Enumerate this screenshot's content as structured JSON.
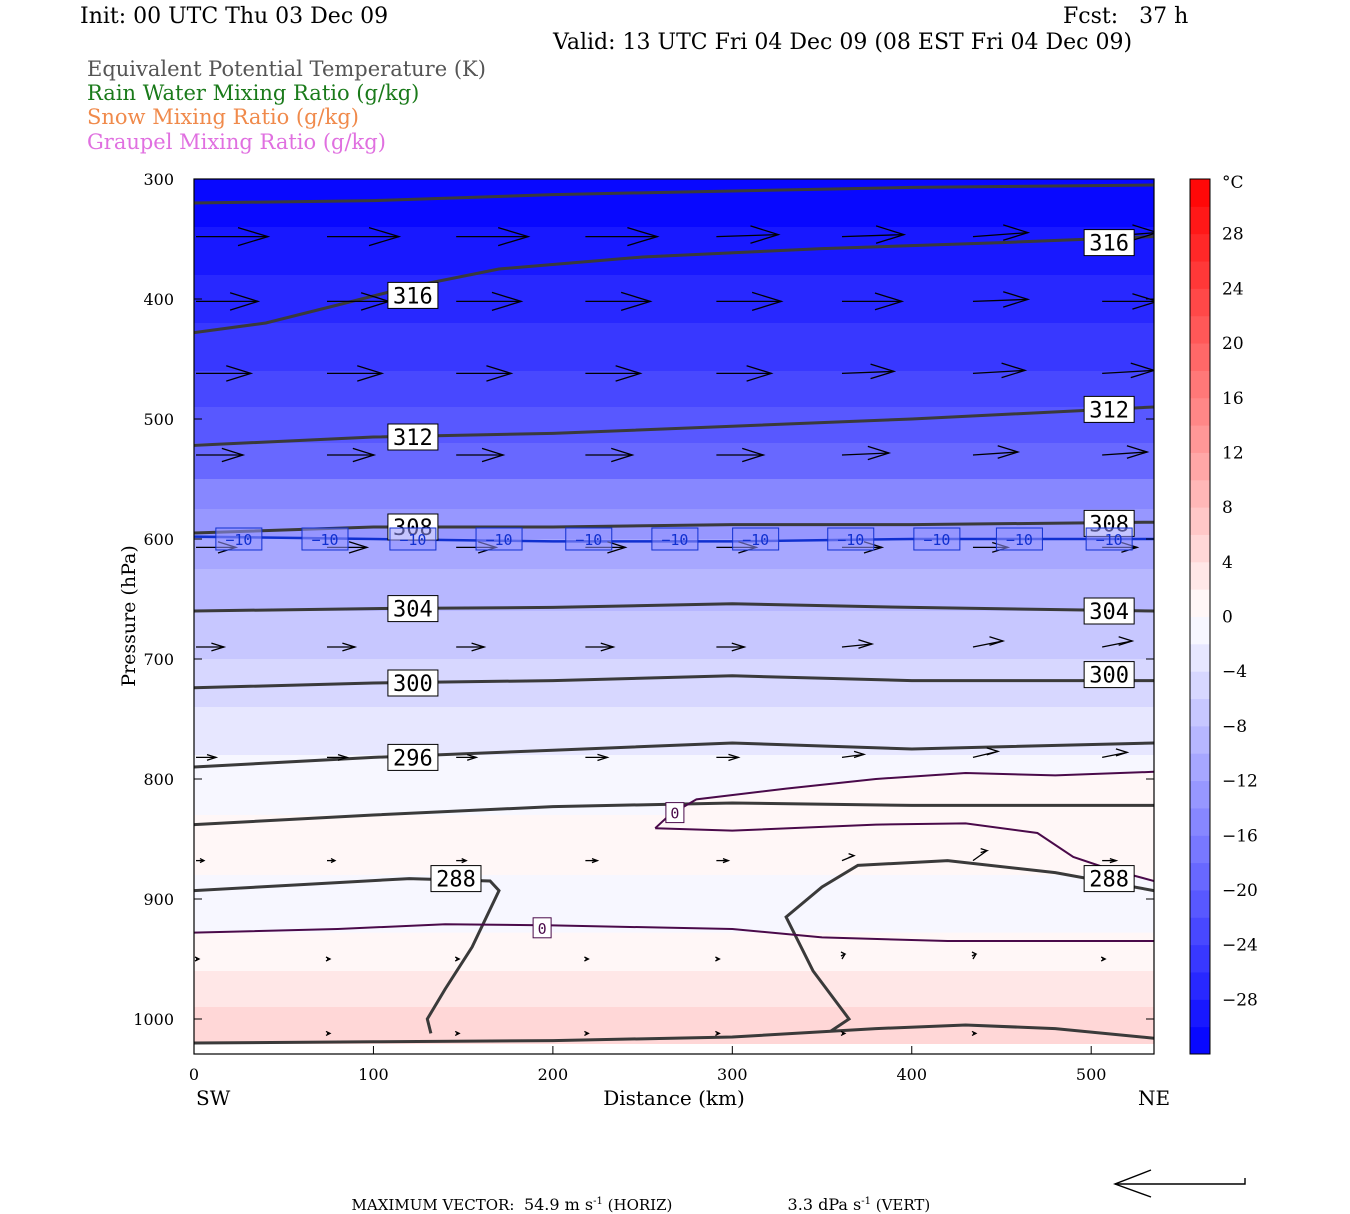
{
  "header": {
    "init": "Init: 00 UTC Thu 03 Dec 09",
    "fcst": "Fcst:   37 h",
    "valid": "Valid: 13 UTC Fri 04 Dec 09 (08 EST Fri 04 Dec 09)"
  },
  "legend": [
    {
      "label": "Equivalent Potential Temperature (K)",
      "color": "#555555"
    },
    {
      "label": "Rain Water Mixing Ratio (g/kg)",
      "color": "#1a7a1a"
    },
    {
      "label": "Snow Mixing Ratio (g/kg)",
      "color": "#f08a4b"
    },
    {
      "label": "Graupel Mixing Ratio (g/kg)",
      "color": "#e070e0"
    }
  ],
  "chart_data": {
    "type": "cross-section",
    "xlabel": "Distance (km)",
    "ylabel": "Pressure (hPa)",
    "xlim": [
      0,
      535
    ],
    "ylim": [
      1020,
      300
    ],
    "y_log_scale": false,
    "x_ticks": [
      0,
      100,
      200,
      300,
      400,
      500
    ],
    "y_ticks": [
      300,
      400,
      500,
      600,
      700,
      800,
      900,
      1000
    ],
    "x_left_label": "SW",
    "x_right_label": "NE",
    "colorbar": {
      "unit": "°C",
      "levels": [
        -32,
        -30,
        -28,
        -26,
        -24,
        -22,
        -20,
        -18,
        -16,
        -14,
        -12,
        -10,
        -8,
        -6,
        -4,
        -2,
        0,
        2,
        4,
        6,
        8,
        10,
        12,
        14,
        16,
        18,
        20,
        22,
        24,
        26,
        28,
        30,
        32
      ],
      "tick_labels": [
        "28",
        "24",
        "20",
        "16",
        "12",
        "8",
        "4",
        "0",
        "−4",
        "−8",
        "−12",
        "−16",
        "−20",
        "−24",
        "−28"
      ],
      "tick_values": [
        28,
        24,
        20,
        16,
        12,
        8,
        4,
        0,
        -4,
        -8,
        -12,
        -16,
        -20,
        -24,
        -28
      ]
    },
    "theta_e_contours": [
      {
        "value": "316",
        "points": [
          [
            0,
            428
          ],
          [
            40,
            420
          ],
          [
            80,
            405
          ],
          [
            120,
            390
          ],
          [
            170,
            375
          ],
          [
            250,
            365
          ],
          [
            350,
            358
          ],
          [
            450,
            353
          ],
          [
            535,
            348
          ]
        ]
      },
      {
        "value": "",
        "points": [
          [
            0,
            320
          ],
          [
            100,
            318
          ],
          [
            200,
            313
          ],
          [
            300,
            310
          ],
          [
            400,
            307
          ],
          [
            535,
            305
          ]
        ]
      },
      {
        "value": "312",
        "points": [
          [
            0,
            522
          ],
          [
            100,
            515
          ],
          [
            200,
            512
          ],
          [
            300,
            506
          ],
          [
            400,
            500
          ],
          [
            535,
            490
          ]
        ]
      },
      {
        "value": "308",
        "points": [
          [
            0,
            595
          ],
          [
            100,
            590
          ],
          [
            200,
            590
          ],
          [
            300,
            588
          ],
          [
            400,
            588
          ],
          [
            535,
            586
          ]
        ]
      },
      {
        "value": "304",
        "points": [
          [
            0,
            660
          ],
          [
            100,
            658
          ],
          [
            200,
            657
          ],
          [
            300,
            654
          ],
          [
            400,
            657
          ],
          [
            535,
            660
          ]
        ]
      },
      {
        "value": "300",
        "points": [
          [
            0,
            724
          ],
          [
            100,
            720
          ],
          [
            200,
            718
          ],
          [
            300,
            714
          ],
          [
            400,
            718
          ],
          [
            535,
            718
          ]
        ]
      },
      {
        "value": "296",
        "points": [
          [
            0,
            790
          ],
          [
            100,
            782
          ],
          [
            200,
            776
          ],
          [
            300,
            770
          ],
          [
            400,
            775
          ],
          [
            535,
            770
          ]
        ]
      },
      {
        "value": "",
        "points": [
          [
            0,
            838
          ],
          [
            100,
            830
          ],
          [
            200,
            823
          ],
          [
            300,
            820
          ],
          [
            400,
            822
          ],
          [
            535,
            822
          ]
        ]
      },
      {
        "value": "288",
        "points": [
          [
            0,
            893
          ],
          [
            60,
            888
          ],
          [
            120,
            883
          ],
          [
            165,
            885
          ],
          [
            170,
            893
          ],
          [
            155,
            940
          ],
          [
            140,
            975
          ],
          [
            130,
            1000
          ],
          [
            132,
            1012
          ]
        ]
      },
      {
        "value": "288",
        "points": [
          [
            535,
            893
          ],
          [
            480,
            878
          ],
          [
            420,
            868
          ],
          [
            370,
            872
          ],
          [
            350,
            890
          ],
          [
            330,
            915
          ],
          [
            345,
            960
          ],
          [
            365,
            1000
          ],
          [
            355,
            1010
          ]
        ]
      },
      {
        "value": "",
        "points": [
          [
            0,
            1020
          ],
          [
            100,
            1019
          ],
          [
            200,
            1018
          ],
          [
            300,
            1015
          ],
          [
            380,
            1008
          ],
          [
            430,
            1005
          ],
          [
            480,
            1008
          ],
          [
            535,
            1016
          ]
        ]
      }
    ],
    "theta_e_labels": [
      {
        "text": "316",
        "x": 122,
        "y": 397
      },
      {
        "text": "316",
        "x": 510,
        "y": 353
      },
      {
        "text": "312",
        "x": 122,
        "y": 515
      },
      {
        "text": "312",
        "x": 510,
        "y": 492
      },
      {
        "text": "308",
        "x": 122,
        "y": 590
      },
      {
        "text": "308",
        "x": 510,
        "y": 587
      },
      {
        "text": "304",
        "x": 122,
        "y": 658
      },
      {
        "text": "304",
        "x": 510,
        "y": 660
      },
      {
        "text": "300",
        "x": 122,
        "y": 720
      },
      {
        "text": "300",
        "x": 510,
        "y": 713
      },
      {
        "text": "296",
        "x": 122,
        "y": 782
      },
      {
        "text": "288",
        "x": 146,
        "y": 883
      },
      {
        "text": "288",
        "x": 510,
        "y": 883
      }
    ],
    "zero_isotherms": [
      {
        "points": [
          [
            0,
            928
          ],
          [
            80,
            925
          ],
          [
            140,
            921
          ],
          [
            200,
            922
          ],
          [
            300,
            925
          ],
          [
            350,
            932
          ],
          [
            420,
            935
          ],
          [
            535,
            935
          ]
        ]
      },
      {
        "points": [
          [
            257,
            841
          ],
          [
            265,
            830
          ],
          [
            280,
            817
          ],
          [
            330,
            808
          ],
          [
            380,
            800
          ],
          [
            430,
            795
          ],
          [
            480,
            797
          ],
          [
            535,
            794
          ]
        ]
      },
      {
        "points": [
          [
            257,
            841
          ],
          [
            300,
            843
          ],
          [
            380,
            838
          ],
          [
            430,
            837
          ],
          [
            470,
            845
          ],
          [
            490,
            865
          ],
          [
            510,
            875
          ],
          [
            535,
            885
          ]
        ]
      }
    ],
    "zero_labels": [
      {
        "text": "0",
        "x": 268,
        "y": 828
      },
      {
        "text": "0",
        "x": 194,
        "y": 924
      }
    ],
    "minus10_isotherm": {
      "value": "−10",
      "points": [
        [
          0,
          598
        ],
        [
          100,
          600
        ],
        [
          200,
          602
        ],
        [
          300,
          602
        ],
        [
          400,
          600
        ],
        [
          535,
          600
        ]
      ],
      "labels": [
        {
          "x": 25
        },
        {
          "x": 73
        },
        {
          "x": 122
        },
        {
          "x": 170
        },
        {
          "x": 220
        },
        {
          "x": 268
        },
        {
          "x": 313
        },
        {
          "x": 366
        },
        {
          "x": 414
        },
        {
          "x": 460
        },
        {
          "x": 510
        }
      ]
    },
    "wind_vectors": [
      {
        "p": 348,
        "xs": [
          0,
          73,
          145,
          217,
          290,
          360,
          433,
          505
        ],
        "len": [
          72,
          72,
          72,
          72,
          62,
          62,
          55,
          55
        ],
        "dp": [
          0,
          0,
          0,
          0,
          -2,
          -2,
          -4,
          -4
        ]
      },
      {
        "p": 402,
        "xs": [
          0,
          73,
          145,
          217,
          290,
          360,
          433,
          505
        ],
        "len": [
          62,
          62,
          65,
          65,
          65,
          60,
          55,
          55
        ],
        "dp": [
          0,
          0,
          0,
          0,
          0,
          0,
          -2,
          0
        ]
      },
      {
        "p": 462,
        "xs": [
          0,
          73,
          145,
          217,
          290,
          360,
          433,
          505
        ],
        "len": [
          55,
          55,
          55,
          55,
          55,
          52,
          52,
          52
        ],
        "dp": [
          0,
          0,
          0,
          0,
          0,
          -2,
          -3,
          -3
        ]
      },
      {
        "p": 530,
        "xs": [
          0,
          73,
          145,
          217,
          290,
          360,
          433,
          505
        ],
        "len": [
          47,
          47,
          47,
          47,
          47,
          47,
          45,
          45
        ],
        "dp": [
          0,
          0,
          0,
          0,
          0,
          -2,
          -3,
          -3
        ]
      },
      {
        "p": 607,
        "xs": [
          0,
          73,
          145,
          217,
          290,
          360,
          433,
          505
        ],
        "len": [
          40,
          40,
          40,
          40,
          40,
          40,
          35,
          35
        ],
        "dp": [
          0,
          0,
          0,
          0,
          0,
          0,
          0,
          0
        ]
      },
      {
        "p": 690,
        "xs": [
          0,
          73,
          145,
          217,
          290,
          360,
          433,
          505
        ],
        "len": [
          28,
          28,
          28,
          28,
          28,
          30,
          30,
          30
        ],
        "dp": [
          0,
          0,
          0,
          0,
          0,
          -3,
          -6,
          -6
        ]
      },
      {
        "p": 782,
        "xs": [
          0,
          73,
          145,
          217,
          290,
          360,
          433,
          505
        ],
        "len": [
          20,
          20,
          20,
          22,
          22,
          22,
          25,
          25
        ],
        "dp": [
          0,
          0,
          0,
          0,
          0,
          -3,
          -6,
          -5
        ]
      },
      {
        "p": 868,
        "xs": [
          0,
          73,
          145,
          217,
          290,
          360,
          433,
          505
        ],
        "len": [
          8,
          8,
          10,
          12,
          12,
          12,
          14,
          14
        ],
        "dp": [
          0,
          0,
          0,
          0,
          0,
          -5,
          -10,
          0
        ]
      },
      {
        "p": 950,
        "xs": [
          0,
          73,
          145,
          217,
          290,
          360,
          433,
          505
        ],
        "len": [
          3,
          3,
          3,
          3,
          3,
          3,
          3,
          3
        ],
        "dp": [
          0,
          0,
          0,
          0,
          0,
          -5,
          -5,
          0
        ]
      },
      {
        "p": 1012,
        "xs": [
          73,
          145,
          217,
          290,
          360,
          433
        ],
        "len": [
          3,
          3,
          3,
          3,
          3,
          3
        ],
        "dp": [
          0,
          0,
          0,
          0,
          0,
          0
        ]
      }
    ]
  },
  "footer": {
    "max_vector_label": "MAXIMUM VECTOR:",
    "horiz_value": "54.9 m s",
    "horiz_exp": "-1",
    "horiz_tag": "(HORIZ)",
    "vert_value": "3.3 dPa s",
    "vert_exp": "-1",
    "vert_tag": "(VERT)"
  }
}
